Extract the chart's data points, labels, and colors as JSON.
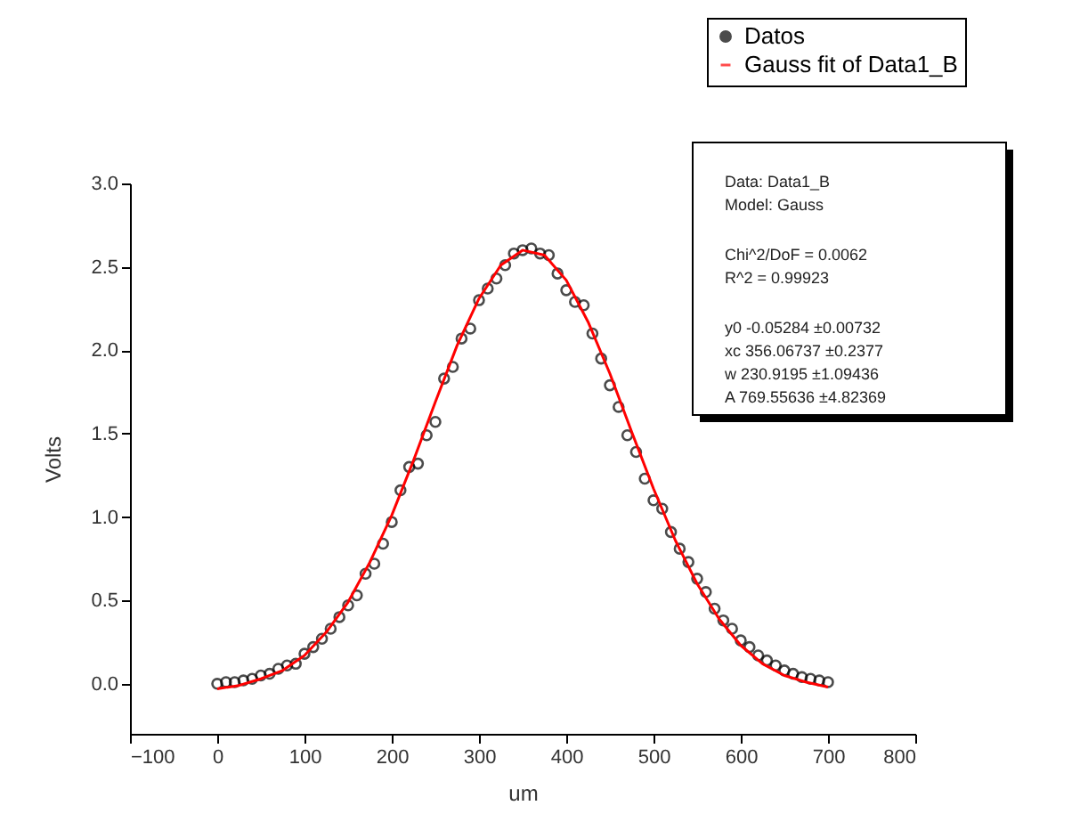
{
  "chart_data": {
    "type": "scatter",
    "xlabel": "um",
    "ylabel": "Volts",
    "xlim": [
      -100,
      800
    ],
    "xticks": [
      -100,
      0,
      100,
      200,
      300,
      400,
      500,
      600,
      700,
      800
    ],
    "ylim": [
      -0.3,
      3.0
    ],
    "yticks": [
      {
        "value": 0,
        "label": "0.0"
      },
      {
        "value": 0.5,
        "label": "0.5"
      },
      {
        "value": 1,
        "label": "1.0"
      },
      {
        "value": 1.5,
        "label": "1.5"
      },
      {
        "value": 2,
        "label": "2.0"
      },
      {
        "value": 2.5,
        "label": "2.5"
      },
      {
        "value": 3,
        "label": "3.0"
      }
    ],
    "grid": false,
    "legend": "top right",
    "series": [
      {
        "name": "Datos",
        "type": "scatter",
        "marker": "circle",
        "color": "#000000",
        "x": [
          0,
          10,
          20,
          30,
          40,
          50,
          60,
          70,
          80,
          90,
          100,
          110,
          120,
          130,
          140,
          150,
          160,
          170,
          180,
          190,
          200,
          210,
          220,
          230,
          240,
          250,
          260,
          270,
          280,
          290,
          300,
          310,
          320,
          330,
          340,
          350,
          360,
          370,
          380,
          390,
          400,
          410,
          420,
          430,
          440,
          450,
          460,
          470,
          480,
          490,
          500,
          510,
          520,
          530,
          540,
          550,
          560,
          570,
          580,
          590,
          600,
          610,
          620,
          630,
          640,
          650,
          660,
          670,
          680,
          690,
          700
        ],
        "values": [
          0.0,
          0.01,
          0.01,
          0.02,
          0.03,
          0.05,
          0.06,
          0.09,
          0.11,
          0.12,
          0.18,
          0.22,
          0.27,
          0.33,
          0.4,
          0.47,
          0.53,
          0.66,
          0.72,
          0.84,
          0.97,
          1.16,
          1.3,
          1.32,
          1.49,
          1.57,
          1.83,
          1.9,
          2.07,
          2.13,
          2.3,
          2.37,
          2.43,
          2.51,
          2.58,
          2.6,
          2.61,
          2.58,
          2.57,
          2.46,
          2.36,
          2.29,
          2.27,
          2.1,
          1.95,
          1.79,
          1.66,
          1.49,
          1.39,
          1.23,
          1.1,
          1.05,
          0.91,
          0.81,
          0.73,
          0.63,
          0.55,
          0.45,
          0.38,
          0.33,
          0.26,
          0.22,
          0.17,
          0.14,
          0.11,
          0.08,
          0.06,
          0.04,
          0.03,
          0.02,
          0.01
        ]
      },
      {
        "name": "Gauss fit of Data1_B",
        "type": "line",
        "marker": "none",
        "line_style": "solid",
        "color": "#ff0000",
        "x": [
          0,
          25,
          50,
          75,
          100,
          125,
          150,
          175,
          200,
          225,
          250,
          275,
          300,
          325,
          350,
          375,
          400,
          425,
          450,
          475,
          500,
          525,
          550,
          575,
          600,
          625,
          650,
          675,
          700
        ],
        "values": [
          -0.03,
          -0.01,
          0.03,
          0.08,
          0.17,
          0.31,
          0.49,
          0.73,
          1.01,
          1.34,
          1.69,
          2.03,
          2.31,
          2.51,
          2.6,
          2.57,
          2.42,
          2.17,
          1.86,
          1.51,
          1.17,
          0.86,
          0.6,
          0.39,
          0.23,
          0.12,
          0.05,
          0.01,
          -0.02
        ]
      }
    ],
    "annotations": [
      "Data: Data1_B",
      "Model: Gauss",
      "Chi^2/DoF = 0.0062",
      "R^2 = 0.99923",
      "y0  -0.05284  ±0.00732",
      "xc  356.06737  ±0.2377",
      "w  230.9195  ±1.09436",
      "A  769.55636  ±4.82369"
    ]
  }
}
